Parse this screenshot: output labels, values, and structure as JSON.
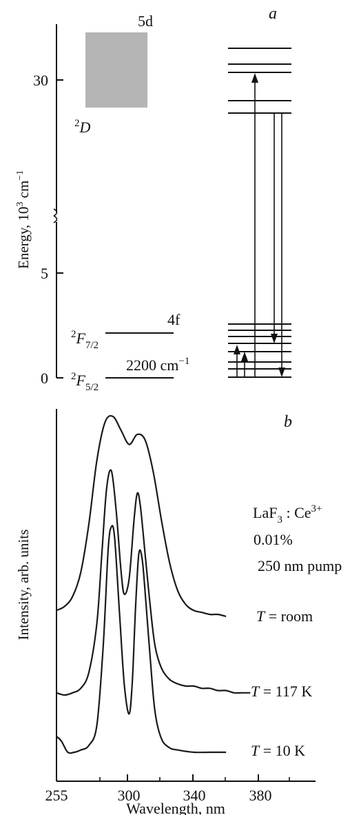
{
  "panel_a": {
    "label": "a",
    "ylabel_main": "Energy, 10",
    "ylabel_sup": "3",
    "ylabel_unit": " cm",
    "ylabel_unit_sup": "−1",
    "tick_30": "30",
    "tick_5": "5",
    "tick_0": "0",
    "band_label": "5d",
    "d_term_sup": "2",
    "d_term": "D",
    "f_label": "4f",
    "f72_sup": "2",
    "f72_main": "F",
    "f72_sub": "7/2",
    "f52_sup": "2",
    "f52_main": "F",
    "f52_sub": "5/2",
    "gap_value": "2200 cm",
    "gap_sup": "−1",
    "band_color": "#b4b4b4",
    "levels_upper_axis": [
      31.3,
      30.8,
      30.3,
      29.0,
      28.4
    ],
    "levels_lower_axis": [
      2.85,
      2.55,
      2.25,
      1.95,
      1.55,
      1.05,
      0.6,
      0.1
    ],
    "transitions": [
      {
        "dir": "up",
        "from": "lower-level-8",
        "to": "upper-level-3"
      },
      {
        "dir": "down",
        "from": "upper-level-5",
        "to": "lower-level-4"
      },
      {
        "dir": "down",
        "from": "upper-level-5",
        "to": "lower-level-8"
      },
      {
        "dir": "up",
        "from": "lower-level-8",
        "to": "lower-level-5"
      },
      {
        "dir": "up",
        "from": "lower-level-8",
        "to": "lower-level-4"
      }
    ]
  },
  "panel_b": {
    "label": "b",
    "ylabel": "Intensity, arb. units",
    "xlabel": "Wavelength, nm",
    "material_main": "LaF",
    "material_sub": "3",
    "material_sep": " : ",
    "material_ion": "Ce",
    "material_sup": "3+",
    "concentration": "0.01%",
    "pump": "250 nm pump",
    "curve_labels": [
      {
        "t": "T",
        "rest": " = room"
      },
      {
        "t": "T",
        "rest": " = 117 K"
      },
      {
        "t": "T",
        "rest": " = 10 K"
      }
    ],
    "xticks": [
      "255",
      "300",
      "340",
      "380"
    ]
  },
  "chart_data": {
    "type": "line",
    "xlabel": "Wavelength, nm",
    "ylabel": "Intensity, arb. units",
    "xlim": [
      255,
      400
    ],
    "x_ticks": [
      255,
      300,
      340,
      380
    ],
    "series": [
      {
        "name": "T = room",
        "offset": 2.0,
        "x": [
          255,
          260,
          265,
          270,
          275,
          280,
          285,
          290,
          295,
          300,
          305,
          310,
          315,
          320,
          325,
          330,
          335,
          340,
          345,
          350,
          355,
          360
        ],
        "y": [
          0.03,
          0.05,
          0.1,
          0.22,
          0.46,
          0.78,
          0.97,
          1.0,
          0.93,
          0.86,
          0.91,
          0.88,
          0.72,
          0.48,
          0.27,
          0.13,
          0.06,
          0.03,
          0.02,
          0.01,
          0.01,
          0.0
        ]
      },
      {
        "name": "T = 117 K",
        "offset": 1.0,
        "x": [
          255,
          260,
          265,
          270,
          275,
          280,
          283,
          286,
          289,
          292,
          295,
          297,
          300,
          303,
          305,
          307,
          310,
          313,
          316,
          320,
          325,
          330,
          335,
          340,
          345,
          350,
          355,
          360,
          365,
          370,
          375
        ],
        "y": [
          0.01,
          0.0,
          0.01,
          0.03,
          0.1,
          0.32,
          0.62,
          0.92,
          1.0,
          0.82,
          0.55,
          0.45,
          0.52,
          0.78,
          0.9,
          0.84,
          0.62,
          0.4,
          0.22,
          0.12,
          0.07,
          0.05,
          0.04,
          0.04,
          0.03,
          0.03,
          0.02,
          0.02,
          0.01,
          0.01,
          0.01
        ]
      },
      {
        "name": "T = 10 K",
        "offset": 0.0,
        "x": [
          255,
          258,
          262,
          266,
          270,
          275,
          280,
          284,
          287,
          289,
          291,
          294,
          297,
          300,
          302,
          304,
          306,
          308,
          310,
          313,
          316,
          320,
          325,
          330,
          340,
          350,
          360
        ],
        "y": [
          0.07,
          0.05,
          0.0,
          0.0,
          0.01,
          0.03,
          0.12,
          0.48,
          0.9,
          1.0,
          0.95,
          0.62,
          0.3,
          0.17,
          0.32,
          0.65,
          0.88,
          0.86,
          0.7,
          0.42,
          0.18,
          0.06,
          0.02,
          0.01,
          0.0,
          0.0,
          0.0
        ]
      }
    ]
  }
}
